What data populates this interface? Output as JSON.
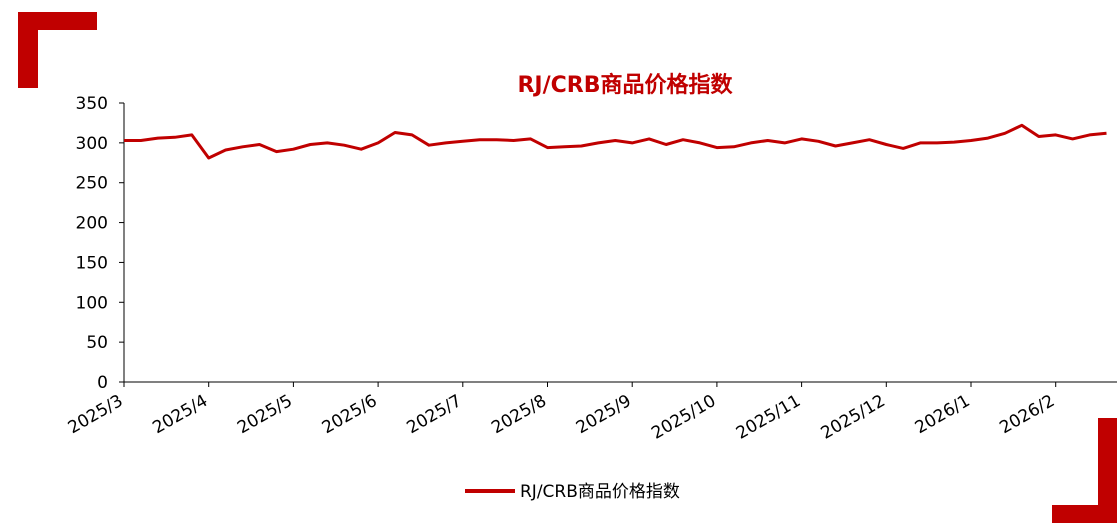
{
  "chart_data": {
    "type": "line",
    "title": "RJ/CRB商品价格指数",
    "categories": [
      "2025/3",
      null,
      null,
      null,
      null,
      "2025/4",
      null,
      null,
      null,
      null,
      "2025/5",
      null,
      null,
      null,
      null,
      "2025/6",
      null,
      null,
      null,
      null,
      "2025/7",
      null,
      null,
      null,
      null,
      "2025/8",
      null,
      null,
      null,
      null,
      "2025/9",
      null,
      null,
      null,
      null,
      "2025/10",
      null,
      null,
      null,
      null,
      "2025/11",
      null,
      null,
      null,
      null,
      "2025/12",
      null,
      null,
      null,
      null,
      "2026/1",
      null,
      null,
      null,
      null,
      "2026/2",
      null,
      null,
      null
    ],
    "series": [
      {
        "name": "RJ/CRB商品价格指数",
        "color": "#c00000",
        "values": [
          303,
          303,
          306,
          307,
          310,
          281,
          291,
          295,
          298,
          289,
          292,
          298,
          300,
          297,
          292,
          300,
          313,
          310,
          297,
          300,
          302,
          304,
          304,
          303,
          305,
          294,
          295,
          296,
          300,
          303,
          300,
          305,
          298,
          304,
          300,
          294,
          295,
          300,
          303,
          300,
          305,
          302,
          296,
          300,
          304,
          298,
          293,
          300,
          300,
          301,
          303,
          306,
          312,
          322,
          308,
          310,
          305,
          310,
          312
        ]
      }
    ],
    "ylim": [
      0,
      350
    ],
    "yticks": [
      0,
      50,
      100,
      150,
      200,
      250,
      300,
      350
    ],
    "legend": "bottom"
  }
}
